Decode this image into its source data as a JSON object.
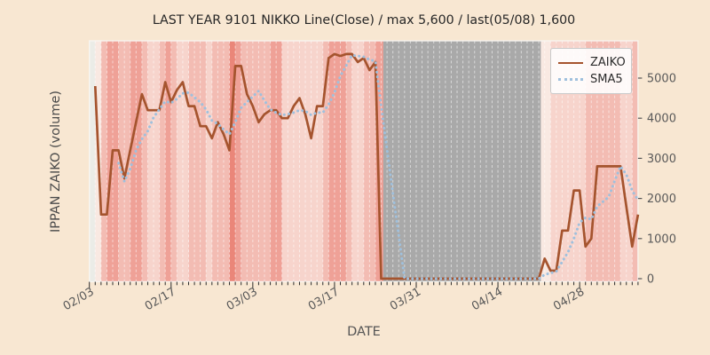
{
  "title": "LAST YEAR 9101 NIKKO Line(Close) / max 5,600 / last(05/08) 1,600",
  "axes": {
    "xlabel": "DATE",
    "ylabel": "IPPAN ZAIKO (volume)"
  },
  "legend": {
    "items": [
      {
        "label": "ZAIKO",
        "style": "solid",
        "color": "#a5542e"
      },
      {
        "label": "SMA5",
        "style": "dotted",
        "color": "#9fc0dd"
      }
    ]
  },
  "colors": {
    "figure_bg": "#f8e7d2",
    "zaiko_line": "#a5542e",
    "sma5_line": "#9fc0dd",
    "tick_text": "#595959",
    "tick_mark": "#2b2b2b",
    "spine": "#f8f6f1",
    "gridline": "rgba(255,255,255,0.55)"
  },
  "chart_data": {
    "type": "line",
    "title": "LAST YEAR 9101 NIKKO Line(Close) / max 5,600 / last(05/08) 1,600",
    "xlabel": "DATE",
    "ylabel": "IPPAN ZAIKO (volume)",
    "x_unit": "daily, day 0 = 02/03, last day = 05/08",
    "x_tick_positions": [
      0,
      14,
      28,
      42,
      56,
      70,
      84
    ],
    "x_tick_labels": [
      "02/03",
      "02/17",
      "03/03",
      "03/17",
      "03/31",
      "04/14",
      "04/28"
    ],
    "y_ticks": [
      0,
      1000,
      2000,
      3000,
      4000,
      5000
    ],
    "ylim": [
      -80,
      5950
    ],
    "max_value": 5600,
    "last_value": 1600,
    "last_date": "05/08",
    "series": [
      {
        "name": "ZAIKO",
        "style": "solid",
        "color": "#a5542e",
        "values": [
          null,
          4800,
          1600,
          1600,
          3200,
          3200,
          2500,
          3200,
          3900,
          4600,
          4200,
          4200,
          4200,
          4900,
          4400,
          4700,
          4900,
          4300,
          4300,
          3800,
          3800,
          3500,
          3900,
          3600,
          3200,
          5300,
          5300,
          4600,
          4300,
          3900,
          4100,
          4200,
          4200,
          4000,
          4000,
          4300,
          4500,
          4100,
          3500,
          4300,
          4300,
          5500,
          5600,
          5550,
          5600,
          5600,
          5400,
          5500,
          5200,
          5400,
          0,
          0,
          0,
          0,
          0,
          0,
          0,
          0,
          0,
          0,
          0,
          0,
          0,
          0,
          0,
          0,
          0,
          0,
          0,
          0,
          0,
          0,
          0,
          0,
          0,
          0,
          0,
          0,
          500,
          200,
          200,
          1200,
          1200,
          2200,
          2200,
          800,
          1000,
          2800,
          2800,
          2800,
          2800,
          2800,
          1800,
          800,
          1600
        ]
      },
      {
        "name": "SMA5",
        "style": "dotted",
        "color": "#9fc0dd",
        "derivation": "5-day moving average of ZAIKO"
      }
    ],
    "background": {
      "day_stripe_codes": "Ww233223321123211222122243222223311111112333211223322222222222222222222222222ww1111112222221 1",
      "stripe_palette": {
        "W": "#ebece7",
        "w": "#f9e9e2",
        "1": "#f7d4cc",
        "2": "#f3bcb3",
        "3": "#efa197",
        "4": "#ea8679"
      },
      "gray_band": {
        "from_day": 50.35,
        "to_day": 77.35,
        "color": "#a9a9a9"
      }
    }
  }
}
